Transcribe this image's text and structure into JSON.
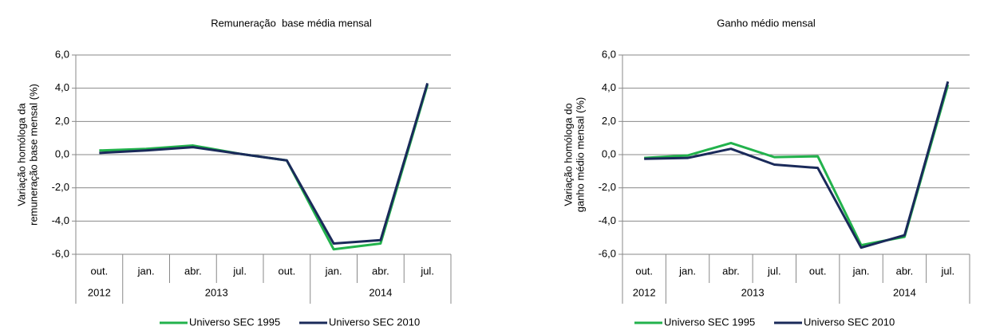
{
  "chart_data": [
    {
      "type": "line",
      "title": "Remuneração  base média mensal",
      "y_label": [
        "Variação homóloga da",
        "remuneração base mensal (%)"
      ],
      "categories": [
        "out.",
        "jan.",
        "abr.",
        "jul.",
        "out.",
        "jan.",
        "abr.",
        "jul."
      ],
      "years": [
        "2012",
        "2013",
        null,
        null,
        null,
        "2014",
        null,
        null
      ],
      "series": [
        {
          "name": "Universo SEC 1995",
          "color": "#22b24c",
          "values": [
            0.25,
            0.35,
            0.55,
            0.05,
            -0.35,
            -5.7,
            -5.35,
            4.2
          ]
        },
        {
          "name": "Universo SEC 2010",
          "color": "#1a2a5a",
          "values": [
            0.1,
            0.25,
            0.45,
            0.05,
            -0.35,
            -5.35,
            -5.15,
            4.3
          ]
        }
      ],
      "ylim": [
        -6,
        6
      ],
      "yticks": [
        {
          "value": -6,
          "label": "-6,0"
        },
        {
          "value": -4,
          "label": "-4,0"
        },
        {
          "value": -2,
          "label": "-2,0"
        },
        {
          "value": 0,
          "label": "0,0"
        },
        {
          "value": 2,
          "label": "2,0"
        },
        {
          "value": 4,
          "label": "4,0"
        },
        {
          "value": 6,
          "label": "6,0"
        }
      ],
      "grid": true,
      "legend": "bottom"
    },
    {
      "type": "line",
      "title": "Ganho médio mensal",
      "y_label": [
        "Variação homóloga do",
        "ganho médio mensal (%)"
      ],
      "categories": [
        "out.",
        "jan.",
        "abr.",
        "jul.",
        "out.",
        "jan.",
        "abr.",
        "jul."
      ],
      "years": [
        "2012",
        "2013",
        null,
        null,
        null,
        "2014",
        null,
        null
      ],
      "series": [
        {
          "name": "Universo SEC 1995",
          "color": "#22b24c",
          "values": [
            -0.2,
            -0.05,
            0.7,
            -0.15,
            -0.1,
            -5.45,
            -4.95,
            4.2
          ]
        },
        {
          "name": "Universo SEC 2010",
          "color": "#1a2a5a",
          "values": [
            -0.25,
            -0.2,
            0.35,
            -0.6,
            -0.8,
            -5.6,
            -4.85,
            4.4
          ]
        }
      ],
      "ylim": [
        -6,
        6
      ],
      "yticks": [
        {
          "value": -6,
          "label": "-6,0"
        },
        {
          "value": -4,
          "label": "-4,0"
        },
        {
          "value": -2,
          "label": "-2,0"
        },
        {
          "value": 0,
          "label": "0,0"
        },
        {
          "value": 2,
          "label": "2,0"
        },
        {
          "value": 4,
          "label": "4,0"
        },
        {
          "value": 6,
          "label": "6,0"
        }
      ],
      "grid": true,
      "legend": "bottom"
    }
  ]
}
